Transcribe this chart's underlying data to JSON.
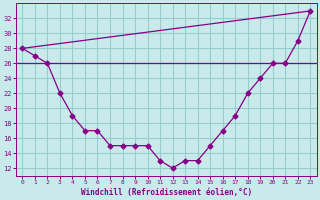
{
  "x": [
    0,
    1,
    2,
    3,
    4,
    5,
    6,
    7,
    8,
    9,
    10,
    11,
    12,
    13,
    14,
    15,
    16,
    17,
    18,
    19,
    20,
    21,
    22,
    23
  ],
  "y_curve": [
    28,
    27,
    26,
    22,
    19,
    17,
    17,
    15,
    15,
    15,
    15,
    13,
    12,
    13,
    13,
    15,
    17,
    19,
    22,
    24,
    26,
    26,
    29,
    33
  ],
  "line_x0": 0,
  "line_y0": 28,
  "line_x1": 23,
  "line_y1": 33,
  "hline_y": 26,
  "color": "#880088",
  "bg_color": "#c8eaea",
  "grid_color": "#99cccc",
  "ylim": [
    11,
    34
  ],
  "xlim": [
    -0.5,
    23.5
  ],
  "yticks": [
    12,
    14,
    16,
    18,
    20,
    22,
    24,
    26,
    28,
    30,
    32
  ],
  "xticks": [
    0,
    1,
    2,
    3,
    4,
    5,
    6,
    7,
    8,
    9,
    10,
    11,
    12,
    13,
    14,
    15,
    16,
    17,
    18,
    19,
    20,
    21,
    22,
    23
  ],
  "xlabel": "Windchill (Refroidissement éolien,°C)"
}
